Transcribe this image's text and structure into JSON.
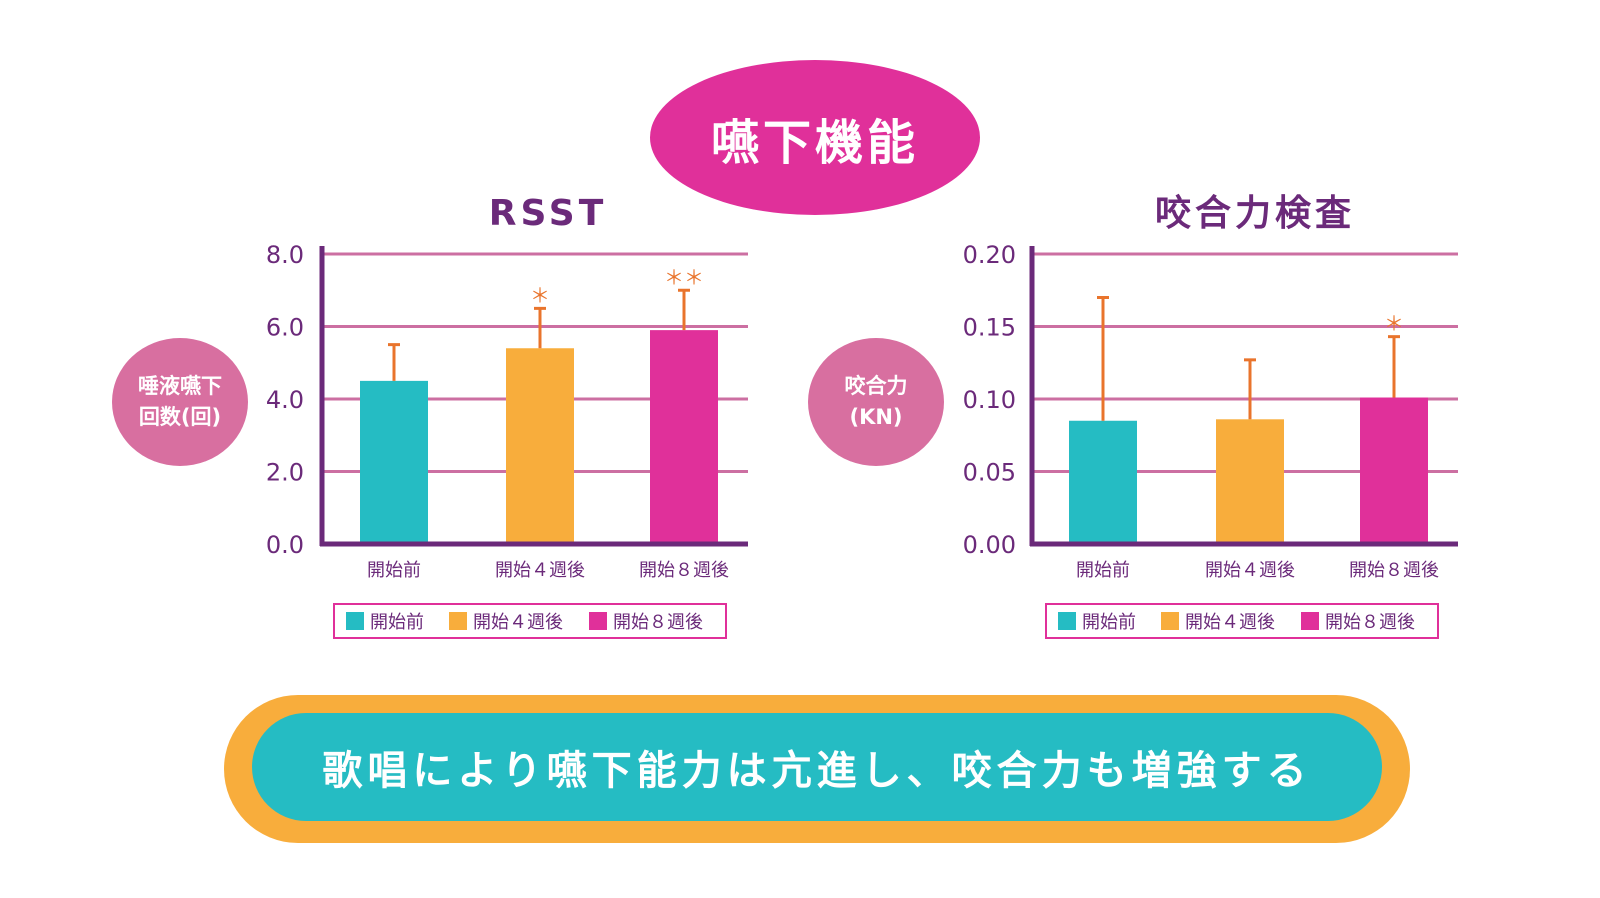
{
  "main_title": "嚥下機能",
  "conclusion": "歌唱により嚥下能力は亢進し、咬合力も増強する",
  "colors": {
    "purple": "#6b2a7a",
    "grid": "#cc6fa2",
    "error_bar": "#e9742c",
    "teal": "#25bcc3",
    "orange": "#f8ad3c",
    "magenta": "#e0309a"
  },
  "chart_data": [
    {
      "type": "bar",
      "title": "RSST",
      "ylabel_lines": [
        "唾液嚥下",
        "回数(回)"
      ],
      "categories": [
        "開始前",
        "開始４週後",
        "開始８週後"
      ],
      "values": [
        4.5,
        5.4,
        5.9
      ],
      "errors": [
        1.0,
        1.1,
        1.1
      ],
      "significance": [
        "",
        "＊",
        "＊＊"
      ],
      "ylim": [
        0,
        8
      ],
      "yticks": [
        "0.0",
        "2.0",
        "4.0",
        "6.0",
        "8.0"
      ],
      "grid": true,
      "legend": [
        "開始前",
        "開始４週後",
        "開始８週後"
      ],
      "legend_position": "bottom"
    },
    {
      "type": "bar",
      "title": "咬合力検査",
      "ylabel_lines": [
        "咬合力",
        "(KN)"
      ],
      "categories": [
        "開始前",
        "開始４週後",
        "開始８週後"
      ],
      "values": [
        0.085,
        0.086,
        0.101
      ],
      "errors": [
        0.085,
        0.041,
        0.042
      ],
      "significance": [
        "",
        "",
        "＊"
      ],
      "ylim": [
        0,
        0.2
      ],
      "yticks": [
        "0.00",
        "0.05",
        "0.10",
        "0.15",
        "0.20"
      ],
      "grid": true,
      "legend": [
        "開始前",
        "開始４週後",
        "開始８週後"
      ],
      "legend_position": "bottom"
    }
  ]
}
